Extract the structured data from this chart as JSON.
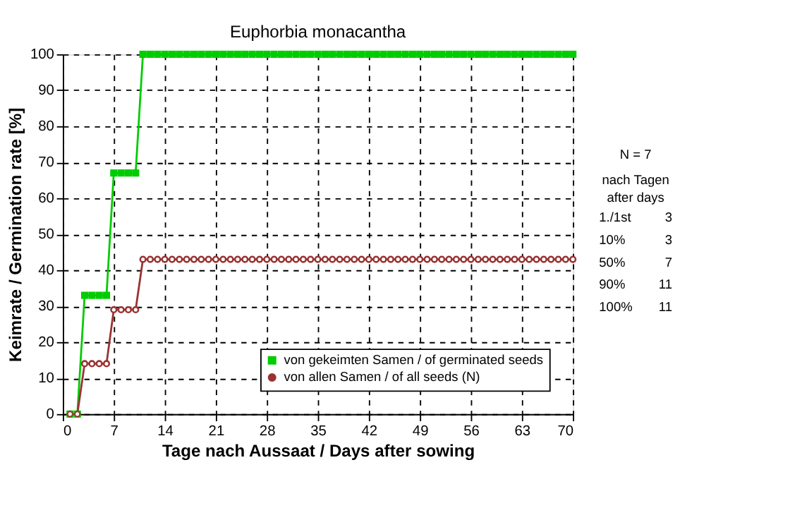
{
  "chart_data": {
    "type": "line",
    "title": "Euphorbia monacantha",
    "xlabel": "Tage nach Aussaat / Days after sowing",
    "ylabel": "Keimrate / Germination rate [%]",
    "x": [
      1,
      2,
      3,
      4,
      5,
      6,
      7,
      8,
      9,
      10,
      11,
      12,
      13,
      14,
      15,
      16,
      17,
      18,
      19,
      20,
      21,
      22,
      23,
      24,
      25,
      26,
      27,
      28,
      29,
      30,
      31,
      32,
      33,
      34,
      35,
      36,
      37,
      38,
      39,
      40,
      41,
      42,
      43,
      44,
      45,
      46,
      47,
      48,
      49,
      50,
      51,
      52,
      53,
      54,
      55,
      56,
      57,
      58,
      59,
      60,
      61,
      62,
      63,
      64,
      65,
      66,
      67,
      68,
      69,
      70
    ],
    "series": [
      {
        "name": "von gekeimten Samen / of germinated seeds",
        "color": "#00cc00",
        "marker": "square",
        "values": [
          0,
          0,
          33,
          33,
          33,
          33,
          67,
          67,
          67,
          67,
          100,
          100,
          100,
          100,
          100,
          100,
          100,
          100,
          100,
          100,
          100,
          100,
          100,
          100,
          100,
          100,
          100,
          100,
          100,
          100,
          100,
          100,
          100,
          100,
          100,
          100,
          100,
          100,
          100,
          100,
          100,
          100,
          100,
          100,
          100,
          100,
          100,
          100,
          100,
          100,
          100,
          100,
          100,
          100,
          100,
          100,
          100,
          100,
          100,
          100,
          100,
          100,
          100,
          100,
          100,
          100,
          100,
          100,
          100,
          100
        ]
      },
      {
        "name": "von allen Samen / of all seeds (N)",
        "color": "#993333",
        "marker": "circle",
        "values": [
          0,
          0,
          14,
          14,
          14,
          14,
          29,
          29,
          29,
          29,
          43,
          43,
          43,
          43,
          43,
          43,
          43,
          43,
          43,
          43,
          43,
          43,
          43,
          43,
          43,
          43,
          43,
          43,
          43,
          43,
          43,
          43,
          43,
          43,
          43,
          43,
          43,
          43,
          43,
          43,
          43,
          43,
          43,
          43,
          43,
          43,
          43,
          43,
          43,
          43,
          43,
          43,
          43,
          43,
          43,
          43,
          43,
          43,
          43,
          43,
          43,
          43,
          43,
          43,
          43,
          43,
          43,
          43,
          43,
          43
        ]
      }
    ],
    "xlim": [
      0,
      70
    ],
    "xticks": [
      0,
      7,
      14,
      21,
      28,
      35,
      42,
      49,
      56,
      63,
      70
    ],
    "ylim": [
      0,
      100
    ],
    "yticks": [
      0,
      10,
      20,
      30,
      40,
      50,
      60,
      70,
      80,
      90,
      100
    ],
    "grid": true,
    "legend": "bottom right",
    "line_style": "solid",
    "annotations": [
      "N = 7",
      "nach Tagen",
      "after days",
      "1./1st",
      "3",
      "10%",
      "3",
      "50%",
      "7",
      "90%",
      "11",
      "100%",
      "11"
    ]
  }
}
